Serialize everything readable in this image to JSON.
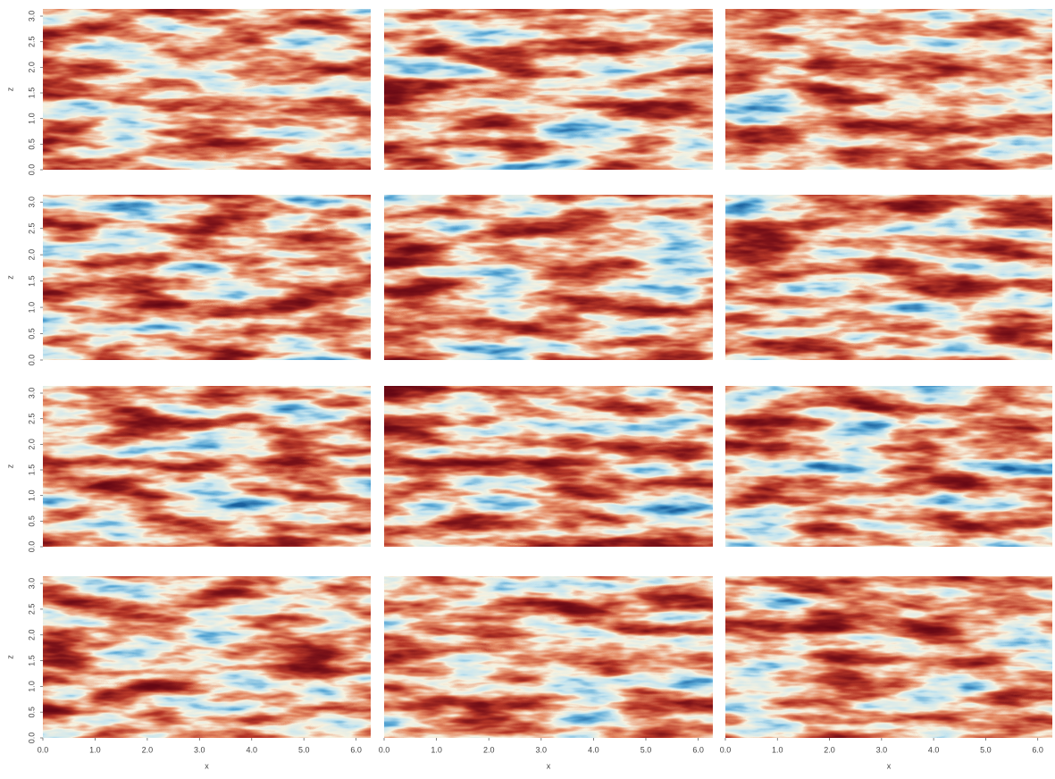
{
  "chart_data": [
    {
      "type": "heatmap",
      "xlim": [
        0,
        6.28
      ],
      "ylim": [
        0,
        3.14
      ],
      "ylabel": "z",
      "yticks": [
        {
          "value": 0,
          "label": "0.0"
        },
        {
          "value": 0.5,
          "label": "0.5"
        },
        {
          "value": 1,
          "label": "1.0"
        },
        {
          "value": 1.5,
          "label": "1.5"
        },
        {
          "value": 2,
          "label": "2.0"
        },
        {
          "value": 2.5,
          "label": "2.5"
        },
        {
          "value": 3,
          "label": "3.0"
        }
      ]
    },
    {
      "type": "heatmap",
      "xlim": [
        0,
        6.28
      ],
      "ylim": [
        0,
        3.14
      ]
    },
    {
      "type": "heatmap",
      "xlim": [
        0,
        6.28
      ],
      "ylim": [
        0,
        3.14
      ]
    },
    {
      "type": "heatmap",
      "xlim": [
        0,
        6.28
      ],
      "ylim": [
        0,
        3.14
      ],
      "ylabel": "z",
      "yticks": [
        {
          "value": 0,
          "label": "0.0"
        },
        {
          "value": 0.5,
          "label": "0.5"
        },
        {
          "value": 1,
          "label": "1.0"
        },
        {
          "value": 1.5,
          "label": "1.5"
        },
        {
          "value": 2,
          "label": "2.0"
        },
        {
          "value": 2.5,
          "label": "2.5"
        },
        {
          "value": 3,
          "label": "3.0"
        }
      ]
    },
    {
      "type": "heatmap",
      "xlim": [
        0,
        6.28
      ],
      "ylim": [
        0,
        3.14
      ]
    },
    {
      "type": "heatmap",
      "xlim": [
        0,
        6.28
      ],
      "ylim": [
        0,
        3.14
      ]
    },
    {
      "type": "heatmap",
      "xlim": [
        0,
        6.28
      ],
      "ylim": [
        0,
        3.14
      ],
      "ylabel": "z",
      "yticks": [
        {
          "value": 0,
          "label": "0.0"
        },
        {
          "value": 0.5,
          "label": "0.5"
        },
        {
          "value": 1,
          "label": "1.0"
        },
        {
          "value": 1.5,
          "label": "1.5"
        },
        {
          "value": 2,
          "label": "2.0"
        },
        {
          "value": 2.5,
          "label": "2.5"
        },
        {
          "value": 3,
          "label": "3.0"
        }
      ]
    },
    {
      "type": "heatmap",
      "xlim": [
        0,
        6.28
      ],
      "ylim": [
        0,
        3.14
      ]
    },
    {
      "type": "heatmap",
      "xlim": [
        0,
        6.28
      ],
      "ylim": [
        0,
        3.14
      ]
    },
    {
      "type": "heatmap",
      "xlim": [
        0,
        6.28
      ],
      "ylim": [
        0,
        3.14
      ],
      "ylabel": "z",
      "xlabel": "x",
      "yticks": [
        {
          "value": 0,
          "label": "0.0"
        },
        {
          "value": 0.5,
          "label": "0.5"
        },
        {
          "value": 1,
          "label": "1.0"
        },
        {
          "value": 1.5,
          "label": "1.5"
        },
        {
          "value": 2,
          "label": "2.0"
        },
        {
          "value": 2.5,
          "label": "2.5"
        },
        {
          "value": 3,
          "label": "3.0"
        }
      ],
      "xticks": [
        {
          "value": 0,
          "label": "0.0"
        },
        {
          "value": 1,
          "label": "1.0"
        },
        {
          "value": 2,
          "label": "2.0"
        },
        {
          "value": 3,
          "label": "3.0"
        },
        {
          "value": 4,
          "label": "4.0"
        },
        {
          "value": 5,
          "label": "5.0"
        },
        {
          "value": 6,
          "label": "6.0"
        }
      ]
    },
    {
      "type": "heatmap",
      "xlim": [
        0,
        6.28
      ],
      "ylim": [
        0,
        3.14
      ],
      "xlabel": "x",
      "xticks": [
        {
          "value": 0,
          "label": "0.0"
        },
        {
          "value": 1,
          "label": "1.0"
        },
        {
          "value": 2,
          "label": "2.0"
        },
        {
          "value": 3,
          "label": "3.0"
        },
        {
          "value": 4,
          "label": "4.0"
        },
        {
          "value": 5,
          "label": "5.0"
        },
        {
          "value": 6,
          "label": "6.0"
        }
      ]
    },
    {
      "type": "heatmap",
      "xlim": [
        0,
        6.28
      ],
      "ylim": [
        0,
        3.14
      ],
      "xlabel": "x",
      "xticks": [
        {
          "value": 0,
          "label": "0.0"
        },
        {
          "value": 1,
          "label": "1.0"
        },
        {
          "value": 2,
          "label": "2.0"
        },
        {
          "value": 3,
          "label": "3.0"
        },
        {
          "value": 4,
          "label": "4.0"
        },
        {
          "value": 5,
          "label": "5.0"
        },
        {
          "value": 6,
          "label": "6.0"
        }
      ]
    }
  ]
}
